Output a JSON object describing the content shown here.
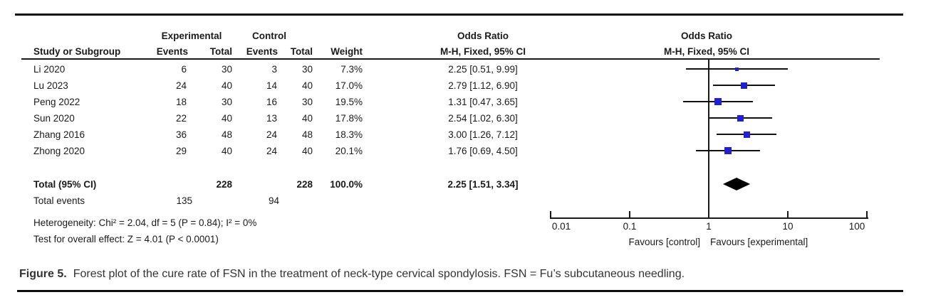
{
  "table": {
    "headers": {
      "group_experimental": "Experimental",
      "group_control": "Control",
      "or_text_title": "Odds Ratio",
      "or_text_sub": "M-H, Fixed, 95% CI",
      "study": "Study or Subgroup",
      "events": "Events",
      "total": "Total",
      "weight": "Weight",
      "plot_title": "Odds Ratio",
      "plot_sub": "M-H, Fixed, 95% CI"
    },
    "total_row": {
      "label": "Total (95% CI)",
      "exp_total": "228",
      "ctrl_total": "228",
      "weight": "100.0%",
      "ci_label": "2.25 [1.51, 3.34]"
    },
    "total_events": {
      "label": "Total events",
      "exp": "135",
      "ctrl": "94"
    },
    "heterogeneity": "Heterogeneity: Chi² = 2.04, df = 5 (P = 0.84); I² = 0%",
    "overall_effect": "Test for overall effect: Z = 4.01 (P < 0.0001)"
  },
  "chart_data": {
    "type": "forest",
    "scale": "log10",
    "xlim": [
      0.01,
      100
    ],
    "axis_ticks": [
      0.01,
      0.1,
      1,
      10,
      100
    ],
    "null_line": 1,
    "effect_measure": "Odds Ratio, M-H, Fixed, 95% CI",
    "favours_left": "Favours [control]",
    "favours_right": "Favours [experimental]",
    "studies": [
      {
        "name": "Li 2020",
        "events_exp": 6,
        "total_exp": 30,
        "events_ctrl": 3,
        "total_ctrl": 30,
        "weight": "7.3%",
        "weight_pct": 7.3,
        "or": 2.25,
        "ci_low": 0.51,
        "ci_high": 9.99,
        "ci_label": "2.25 [0.51, 9.99]"
      },
      {
        "name": "Lu 2023",
        "events_exp": 24,
        "total_exp": 40,
        "events_ctrl": 14,
        "total_ctrl": 40,
        "weight": "17.0%",
        "weight_pct": 17.0,
        "or": 2.79,
        "ci_low": 1.12,
        "ci_high": 6.9,
        "ci_label": "2.79 [1.12, 6.90]"
      },
      {
        "name": "Peng 2022",
        "events_exp": 18,
        "total_exp": 30,
        "events_ctrl": 16,
        "total_ctrl": 30,
        "weight": "19.5%",
        "weight_pct": 19.5,
        "or": 1.31,
        "ci_low": 0.47,
        "ci_high": 3.65,
        "ci_label": "1.31 [0.47, 3.65]"
      },
      {
        "name": "Sun 2020",
        "events_exp": 22,
        "total_exp": 40,
        "events_ctrl": 13,
        "total_ctrl": 40,
        "weight": "17.8%",
        "weight_pct": 17.8,
        "or": 2.54,
        "ci_low": 1.02,
        "ci_high": 6.3,
        "ci_label": "2.54 [1.02, 6.30]"
      },
      {
        "name": "Zhang 2016",
        "events_exp": 36,
        "total_exp": 48,
        "events_ctrl": 24,
        "total_ctrl": 48,
        "weight": "18.3%",
        "weight_pct": 18.3,
        "or": 3.0,
        "ci_low": 1.26,
        "ci_high": 7.12,
        "ci_label": "3.00 [1.26, 7.12]"
      },
      {
        "name": "Zhong 2020",
        "events_exp": 29,
        "total_exp": 40,
        "events_ctrl": 24,
        "total_ctrl": 40,
        "weight": "20.1%",
        "weight_pct": 20.1,
        "or": 1.76,
        "ci_low": 0.69,
        "ci_high": 4.5,
        "ci_label": "1.76 [0.69, 4.50]"
      }
    ],
    "total": {
      "or": 2.25,
      "ci_low": 1.51,
      "ci_high": 3.34
    },
    "colors": {
      "marker": "#2121cc",
      "diamond": "#000000",
      "line": "#111111"
    }
  },
  "caption": {
    "label": "Figure 5.",
    "text": "Forest plot of the cure rate of FSN in the treatment of neck-type cervical spondylosis. FSN = Fu’s subcutaneous needling."
  }
}
